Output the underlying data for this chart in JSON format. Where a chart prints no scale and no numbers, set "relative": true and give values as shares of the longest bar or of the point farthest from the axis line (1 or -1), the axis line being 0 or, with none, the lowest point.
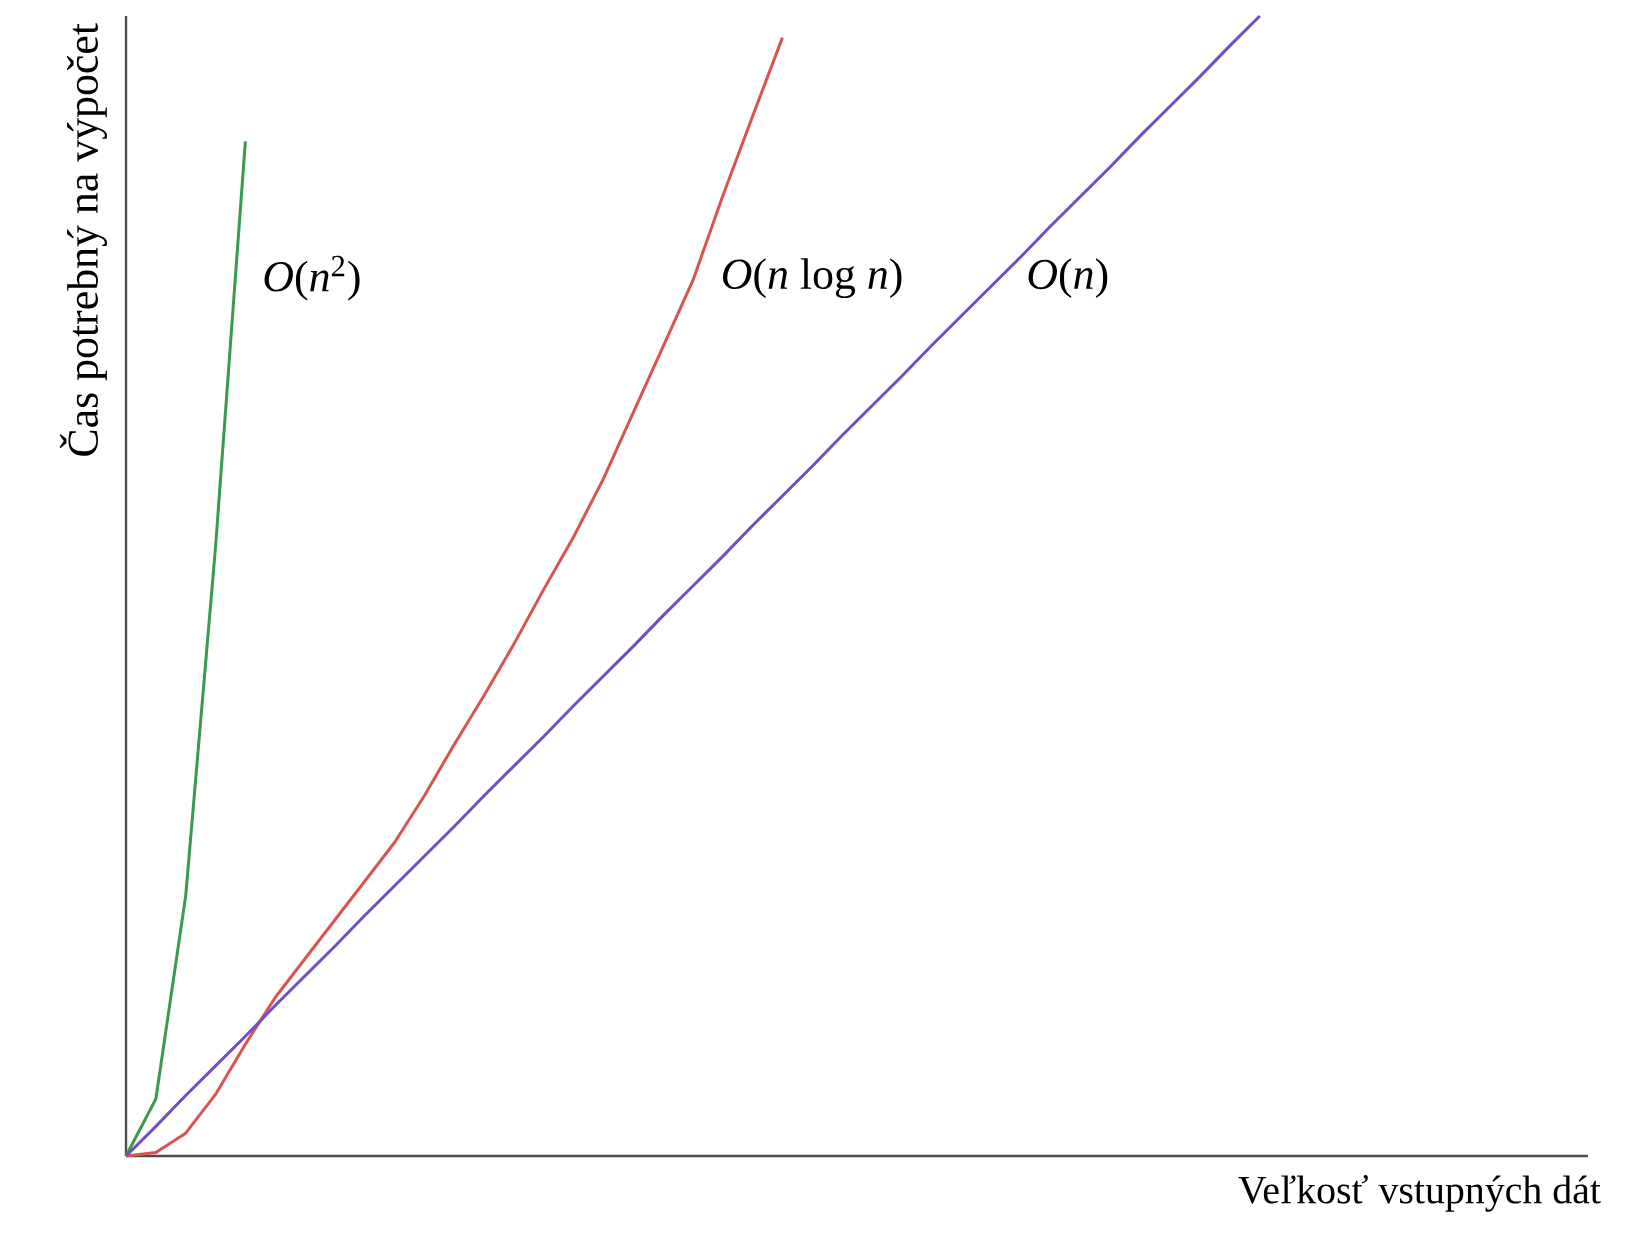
{
  "chart_data": {
    "type": "line",
    "relative": true,
    "xlabel": "Veľkosť vstupných dát",
    "ylabel": "Čas potrebný na výpočet",
    "marker": "none",
    "categories": [
      null,
      null,
      null,
      null,
      null,
      null,
      null,
      null,
      null,
      null,
      null,
      null,
      null,
      null,
      null,
      null,
      null,
      null,
      null,
      null,
      null,
      null,
      null,
      null,
      null,
      null,
      null,
      null,
      null,
      null,
      null,
      null,
      null,
      null,
      null,
      null,
      null,
      null,
      null,
      null,
      null,
      null,
      null,
      null,
      null,
      null,
      null,
      null,
      null,
      null
    ],
    "series": [
      {
        "name": "*O*(*n*$^{2}$)",
        "color": "#3a9a50",
        "values": [
          0,
          0.05,
          0.228,
          0.534,
          0.89,
          null,
          null,
          null,
          null,
          null,
          null,
          null,
          null,
          null,
          null,
          null,
          null,
          null,
          null,
          null,
          null,
          null,
          null,
          null,
          null,
          null,
          null,
          null,
          null,
          null,
          null,
          null,
          null,
          null,
          null,
          null,
          null,
          null,
          null,
          null,
          null,
          null,
          null,
          null,
          null,
          null,
          null,
          null,
          null,
          null
        ]
      },
      {
        "name": "*O*(*n* log *n*)",
        "color": "#d9534f",
        "values": [
          0,
          0.003,
          0.02,
          0.054,
          0.098,
          0.139,
          0.173,
          0.207,
          0.241,
          0.275,
          0.316,
          0.361,
          0.404,
          0.449,
          0.497,
          0.543,
          0.594,
          0.652,
          0.71,
          0.768,
          0.842,
          0.912,
          0.981,
          null,
          null,
          null,
          null,
          null,
          null,
          null,
          null,
          null,
          null,
          null,
          null,
          null,
          null,
          null,
          null,
          null,
          null,
          null,
          null,
          null,
          null,
          null,
          null,
          null,
          null,
          null
        ]
      },
      {
        "name": "*O*(*n*)",
        "color": "#6f4fc4",
        "values": [
          0,
          0.026,
          0.053,
          0.079,
          0.105,
          0.132,
          0.158,
          0.184,
          0.211,
          0.237,
          0.263,
          0.289,
          0.316,
          0.342,
          0.368,
          0.395,
          0.421,
          0.447,
          0.474,
          0.5,
          0.526,
          0.553,
          0.579,
          0.605,
          0.632,
          0.658,
          0.684,
          0.711,
          0.737,
          0.763,
          0.789,
          0.816,
          0.842,
          0.868,
          0.895,
          0.921,
          0.947,
          0.974,
          1,
          null,
          null,
          null,
          null,
          null,
          null,
          null,
          null,
          null,
          null,
          null
        ]
      }
    ]
  }
}
